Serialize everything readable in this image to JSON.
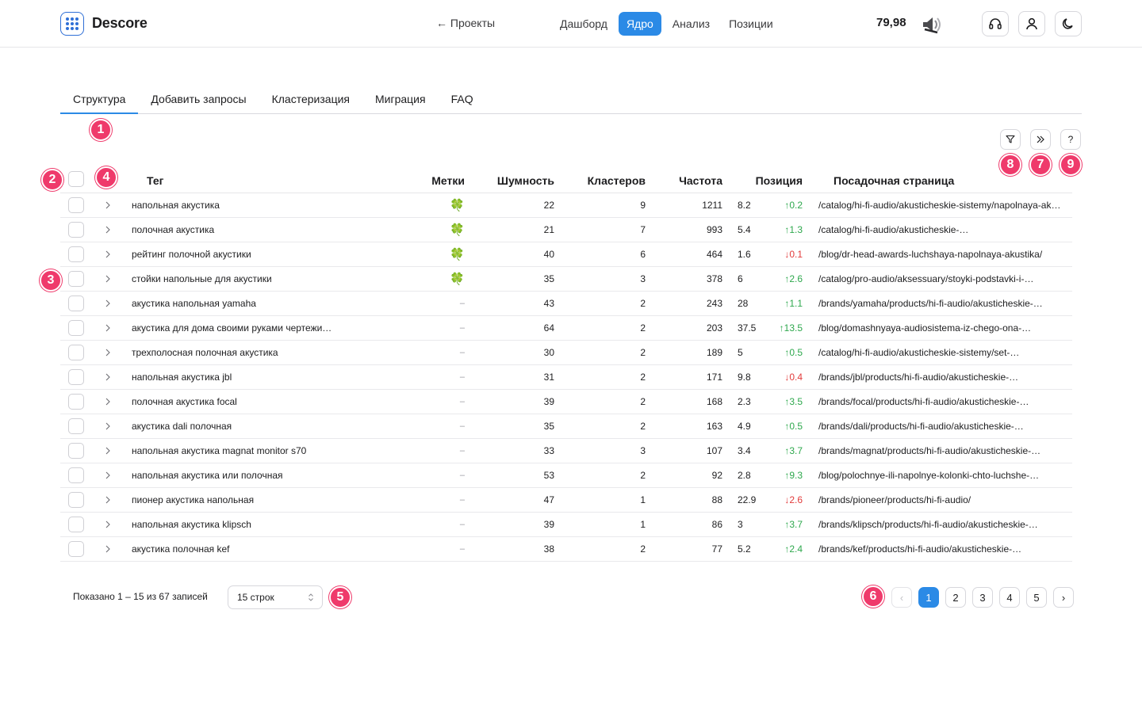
{
  "header": {
    "brand": "Descore",
    "back_link": "← Проекты",
    "nav": [
      {
        "label": "Дашборд",
        "active": false
      },
      {
        "label": "Ядро",
        "active": true
      },
      {
        "label": "Анализ",
        "active": false
      },
      {
        "label": "Позиции",
        "active": false
      }
    ],
    "balance": "79,98",
    "icons": [
      "speaker-icon",
      "headphones-icon",
      "user-icon",
      "moon-icon"
    ]
  },
  "tabs": [
    {
      "label": "Структура",
      "active": true
    },
    {
      "label": "Добавить запросы",
      "active": false
    },
    {
      "label": "Кластеризация",
      "active": false
    },
    {
      "label": "Миграция",
      "active": false
    },
    {
      "label": "FAQ",
      "active": false
    }
  ],
  "toolbar": {
    "filter_icon": "filter-icon",
    "expand_icon": "double-chevron-right-icon",
    "help_label": "?"
  },
  "badges": [
    "1",
    "2",
    "3",
    "4",
    "5",
    "6",
    "7",
    "8",
    "9"
  ],
  "table": {
    "columns": {
      "tag": "Тег",
      "marks": "Метки",
      "noise": "Шумность",
      "clusters": "Кластеров",
      "frequency": "Частота",
      "position": "Позиция",
      "landing": "Посадочная страница"
    },
    "rows": [
      {
        "tag": "напольная акустика",
        "mark": "🍀",
        "noise": "22",
        "clusters": "9",
        "freq": "1211",
        "pos": "8.2",
        "delta": "↑0.2",
        "dir": "up",
        "url": "/catalog/hi-fi-audio/akusticheskie-sistemy/napolnaya-akustika/"
      },
      {
        "tag": "полочная акустика",
        "mark": "🍀",
        "noise": "21",
        "clusters": "7",
        "freq": "993",
        "pos": "5.4",
        "delta": "↑1.3",
        "dir": "up",
        "url": "/catalog/hi-fi-audio/akusticheskie-…"
      },
      {
        "tag": "рейтинг полочной акустики",
        "mark": "🍀",
        "noise": "40",
        "clusters": "6",
        "freq": "464",
        "pos": "1.6",
        "delta": "↓0.1",
        "dir": "down",
        "url": "/blog/dr-head-awards-luchshaya-napolnaya-akustika/"
      },
      {
        "tag": "стойки напольные для акустики",
        "mark": "🍀",
        "noise": "35",
        "clusters": "3",
        "freq": "378",
        "pos": "6",
        "delta": "↑2.6",
        "dir": "up",
        "url": "/catalog/pro-audio/aksessuary/stoyki-podstavki-i-…"
      },
      {
        "tag": "акустика напольная yamaha",
        "mark": "–",
        "noise": "43",
        "clusters": "2",
        "freq": "243",
        "pos": "28",
        "delta": "↑1.1",
        "dir": "up",
        "url": "/brands/yamaha/products/hi-fi-audio/akusticheskie-…"
      },
      {
        "tag": "акустика для дома своими руками чертежи…",
        "mark": "–",
        "noise": "64",
        "clusters": "2",
        "freq": "203",
        "pos": "37.5",
        "delta": "↑13.5",
        "dir": "up",
        "url": "/blog/domashnyaya-audiosistema-iz-chego-ona-…"
      },
      {
        "tag": "трехполосная полочная акустика",
        "mark": "–",
        "noise": "30",
        "clusters": "2",
        "freq": "189",
        "pos": "5",
        "delta": "↑0.5",
        "dir": "up",
        "url": "/catalog/hi-fi-audio/akusticheskie-sistemy/set-…"
      },
      {
        "tag": "напольная акустика jbl",
        "mark": "–",
        "noise": "31",
        "clusters": "2",
        "freq": "171",
        "pos": "9.8",
        "delta": "↓0.4",
        "dir": "down",
        "url": "/brands/jbl/products/hi-fi-audio/akusticheskie-…"
      },
      {
        "tag": "полочная акустика focal",
        "mark": "–",
        "noise": "39",
        "clusters": "2",
        "freq": "168",
        "pos": "2.3",
        "delta": "↑3.5",
        "dir": "up",
        "url": "/brands/focal/products/hi-fi-audio/akusticheskie-…"
      },
      {
        "tag": "акустика dali полочная",
        "mark": "–",
        "noise": "35",
        "clusters": "2",
        "freq": "163",
        "pos": "4.9",
        "delta": "↑0.5",
        "dir": "up",
        "url": "/brands/dali/products/hi-fi-audio/akusticheskie-…"
      },
      {
        "tag": "напольная акустика magnat monitor s70",
        "mark": "–",
        "noise": "33",
        "clusters": "3",
        "freq": "107",
        "pos": "3.4",
        "delta": "↑3.7",
        "dir": "up",
        "url": "/brands/magnat/products/hi-fi-audio/akusticheskie-…"
      },
      {
        "tag": "напольная акустика или полочная",
        "mark": "–",
        "noise": "53",
        "clusters": "2",
        "freq": "92",
        "pos": "2.8",
        "delta": "↑9.3",
        "dir": "up",
        "url": "/blog/polochnye-ili-napolnye-kolonki-chto-luchshe-…"
      },
      {
        "tag": "пионер акустика напольная",
        "mark": "–",
        "noise": "47",
        "clusters": "1",
        "freq": "88",
        "pos": "22.9",
        "delta": "↓2.6",
        "dir": "down",
        "url": "/brands/pioneer/products/hi-fi-audio/"
      },
      {
        "tag": "напольная акустика klipsch",
        "mark": "–",
        "noise": "39",
        "clusters": "1",
        "freq": "86",
        "pos": "3",
        "delta": "↑3.7",
        "dir": "up",
        "url": "/brands/klipsch/products/hi-fi-audio/akusticheskie-…"
      },
      {
        "tag": "акустика полочная kef",
        "mark": "–",
        "noise": "38",
        "clusters": "2",
        "freq": "77",
        "pos": "5.2",
        "delta": "↑2.4",
        "dir": "up",
        "url": "/brands/kef/products/hi-fi-audio/akusticheskie-…"
      }
    ]
  },
  "footer": {
    "shown": "Показано 1 – 15 из 67 записей",
    "rows_select": "15 строк",
    "pages": [
      "1",
      "2",
      "3",
      "4",
      "5"
    ],
    "current_page": "1",
    "prev_label": "‹",
    "next_label": "›"
  }
}
